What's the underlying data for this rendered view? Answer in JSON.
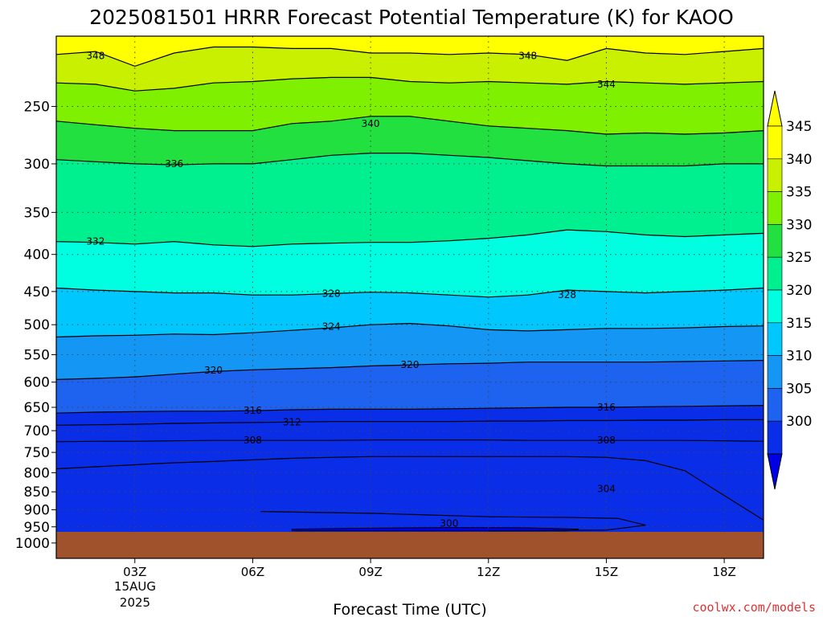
{
  "chart_data": {
    "type": "heatmap",
    "title": "2025081501 HRRR Forecast Potential Temperature (K) for KAOO",
    "xlabel": "Forecast Time (UTC)",
    "ylabel": "",
    "x_range_hours": [
      1,
      19
    ],
    "x_ticks": [
      {
        "hour": 3,
        "label": "03Z"
      },
      {
        "hour": 6,
        "label": "06Z"
      },
      {
        "hour": 9,
        "label": "09Z"
      },
      {
        "hour": 12,
        "label": "12Z"
      },
      {
        "hour": 15,
        "label": "15Z"
      },
      {
        "hour": 18,
        "label": "18Z"
      }
    ],
    "x_date_label": [
      "15AUG",
      "2025"
    ],
    "y_axis": "pressure (hPa), log scale, inverted",
    "y_range_hpa": [
      1050,
      200
    ],
    "y_ticks": [
      250,
      300,
      350,
      400,
      450,
      500,
      550,
      600,
      650,
      700,
      750,
      800,
      850,
      900,
      950,
      1000
    ],
    "grid": true,
    "colorbar": {
      "levels": [
        300,
        305,
        310,
        315,
        320,
        325,
        330,
        335,
        340,
        345
      ],
      "colors": [
        "#0000e6",
        "#0a2ee8",
        "#1e62f0",
        "#1496f5",
        "#00c8ff",
        "#00ffe0",
        "#00f090",
        "#22e040",
        "#7ff000",
        "#c8f000",
        "#ffff00"
      ]
    },
    "ground_color": "#a0522d",
    "contour_interval_k": 4,
    "contours": [
      {
        "theta": 348,
        "hpa": [
          212,
          210,
          220,
          211,
          207,
          207,
          208,
          208,
          211,
          211,
          212,
          211,
          212,
          216,
          208,
          211,
          212,
          210,
          208
        ]
      },
      {
        "theta": 344,
        "hpa": [
          232,
          233,
          238,
          236,
          232,
          231,
          229,
          228,
          228,
          231,
          232,
          231,
          232,
          233,
          231,
          232,
          233,
          232,
          231
        ]
      },
      {
        "theta": 340,
        "hpa": [
          262,
          265,
          268,
          270,
          270,
          270,
          264,
          262,
          258,
          258,
          262,
          266,
          268,
          270,
          273,
          272,
          273,
          272,
          270
        ]
      },
      {
        "theta": 336,
        "hpa": [
          296,
          298,
          300,
          301,
          300,
          300,
          296,
          292,
          290,
          290,
          292,
          294,
          297,
          300,
          302,
          302,
          302,
          300,
          300
        ]
      },
      {
        "theta": 332,
        "hpa": [
          384,
          385,
          387,
          384,
          388,
          390,
          387,
          386,
          385,
          385,
          383,
          380,
          376,
          370,
          372,
          376,
          378,
          376,
          374
        ]
      },
      {
        "theta": 328,
        "hpa": [
          445,
          448,
          450,
          452,
          452,
          455,
          455,
          453,
          451,
          452,
          455,
          458,
          455,
          448,
          450,
          452,
          450,
          448,
          445
        ]
      },
      {
        "theta": 324,
        "hpa": [
          520,
          518,
          517,
          515,
          516,
          513,
          509,
          505,
          500,
          498,
          502,
          508,
          510,
          508,
          506,
          506,
          505,
          503,
          502
        ]
      },
      {
        "theta": 320,
        "hpa": [
          595,
          593,
          590,
          585,
          580,
          577,
          575,
          573,
          570,
          568,
          566,
          565,
          563,
          563,
          563,
          563,
          562,
          561,
          560
        ]
      },
      {
        "theta": 316,
        "hpa": [
          662,
          660,
          659,
          658,
          658,
          657,
          655,
          654,
          654,
          654,
          653,
          652,
          651,
          650,
          650,
          649,
          648,
          647,
          646
        ]
      },
      {
        "theta": 312,
        "hpa": [
          688,
          687,
          686,
          684,
          683,
          682,
          681,
          680,
          680,
          680,
          680,
          679,
          679,
          678,
          678,
          677,
          677,
          676,
          676
        ]
      },
      {
        "theta": 308,
        "hpa": [
          725,
          724,
          724,
          723,
          722,
          722,
          722,
          722,
          721,
          721,
          721,
          721,
          722,
          722,
          722,
          722,
          722,
          723,
          724
        ]
      },
      {
        "theta": 304,
        "hpa": [
          790,
          785,
          780,
          775,
          772,
          768,
          764,
          762,
          760,
          760,
          760,
          760,
          760,
          760,
          762,
          770,
          795,
          860,
          930
        ]
      }
    ],
    "contour_label_points": [
      {
        "theta": 348,
        "hour": 2,
        "hpa": 213
      },
      {
        "theta": 348,
        "hour": 13,
        "hpa": 213
      },
      {
        "theta": 344,
        "hour": 15,
        "hpa": 233
      },
      {
        "theta": 340,
        "hour": 9,
        "hpa": 264
      },
      {
        "theta": 336,
        "hour": 4,
        "hpa": 300
      },
      {
        "theta": 332,
        "hour": 2,
        "hpa": 384
      },
      {
        "theta": 328,
        "hour": 8,
        "hpa": 453
      },
      {
        "theta": 328,
        "hour": 14,
        "hpa": 455
      },
      {
        "theta": 324,
        "hour": 8,
        "hpa": 503
      },
      {
        "theta": 320,
        "hour": 5,
        "hpa": 578
      },
      {
        "theta": 320,
        "hour": 10,
        "hpa": 568
      },
      {
        "theta": 316,
        "hour": 6,
        "hpa": 657
      },
      {
        "theta": 316,
        "hour": 15,
        "hpa": 650
      },
      {
        "theta": 312,
        "hour": 7,
        "hpa": 681
      },
      {
        "theta": 308,
        "hour": 6,
        "hpa": 722
      },
      {
        "theta": 308,
        "hour": 15,
        "hpa": 722
      },
      {
        "theta": 304,
        "hour": 15,
        "hpa": 842
      },
      {
        "theta": 300,
        "hour": 11,
        "hpa": 940
      }
    ]
  },
  "watermark": "coolwx.com/models"
}
